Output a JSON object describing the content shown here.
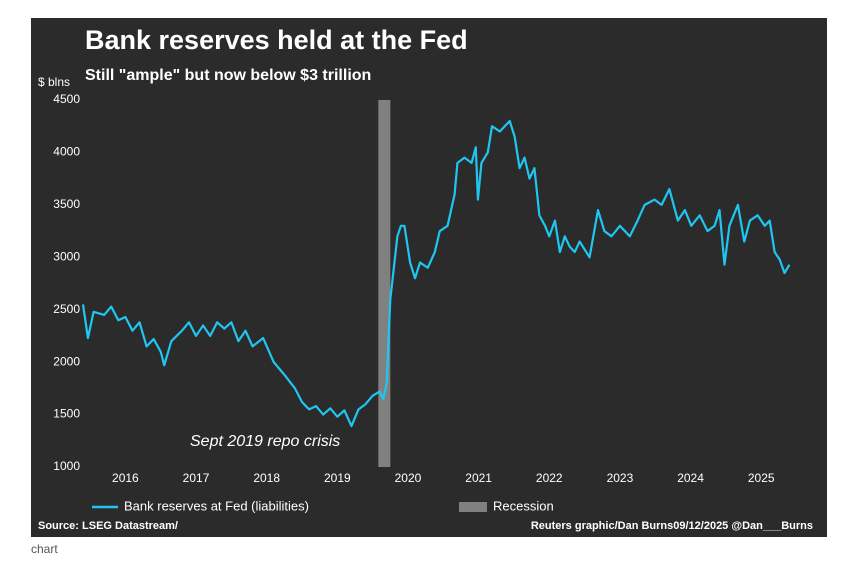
{
  "caption": "chart",
  "chart_data": {
    "type": "line",
    "title": "Bank reserves held at the Fed",
    "subtitle": "Still \"ample\" but now below $3 trillion",
    "ylabel": "$ blns",
    "annotation": "Sept 2019 repo crisis",
    "source": "Source: LSEG Datastream/",
    "credit": "Reuters graphic/Dan Burns09/12/2025 @Dan___Burns",
    "xlim": [
      2015.9,
      2025.95
    ],
    "xticks": [
      2016,
      2017,
      2018,
      2019,
      2020,
      2021,
      2022,
      2023,
      2024,
      2025
    ],
    "ylim": [
      1000,
      4500
    ],
    "yticks": [
      1000,
      1500,
      2000,
      2500,
      3000,
      3500,
      4000,
      4500
    ],
    "grid": false,
    "x": [
      2015.9,
      2015.97,
      2016.05,
      2016.2,
      2016.3,
      2016.4,
      2016.5,
      2016.6,
      2016.7,
      2016.8,
      2016.9,
      2017.0,
      2017.05,
      2017.15,
      2017.3,
      2017.4,
      2017.5,
      2017.6,
      2017.7,
      2017.8,
      2017.9,
      2018.0,
      2018.1,
      2018.2,
      2018.3,
      2018.45,
      2018.6,
      2018.75,
      2018.9,
      2019.0,
      2019.1,
      2019.2,
      2019.3,
      2019.4,
      2019.5,
      2019.6,
      2019.7,
      2019.8,
      2019.9,
      2020.0,
      2020.1,
      2020.15,
      2020.2,
      2020.25,
      2020.3,
      2020.35,
      2020.4,
      2020.45,
      2020.53,
      2020.6,
      2020.67,
      2020.78,
      2020.88,
      2020.95,
      2021.06,
      2021.16,
      2021.2,
      2021.3,
      2021.4,
      2021.46,
      2021.49,
      2021.54,
      2021.63,
      2021.69,
      2021.8,
      2021.94,
      2022.01,
      2022.08,
      2022.15,
      2022.22,
      2022.29,
      2022.36,
      2022.44,
      2022.5,
      2022.58,
      2022.65,
      2022.72,
      2022.79,
      2022.86,
      2022.93,
      2023.07,
      2023.19,
      2023.28,
      2023.38,
      2023.5,
      2023.64,
      2023.75,
      2023.85,
      2023.99,
      2024.09,
      2024.2,
      2024.32,
      2024.42,
      2024.51,
      2024.63,
      2024.74,
      2024.84,
      2024.91,
      2024.98,
      2025.05,
      2025.17,
      2025.26,
      2025.34,
      2025.45,
      2025.55,
      2025.62,
      2025.69,
      2025.76,
      2025.83,
      2025.9
    ],
    "series": [
      {
        "name": "Bank reserves at Fed (liabilities)",
        "color": "#1fc6f0",
        "values": [
          2550,
          2230,
          2480,
          2450,
          2530,
          2400,
          2430,
          2300,
          2380,
          2150,
          2220,
          2100,
          1970,
          2200,
          2300,
          2380,
          2250,
          2350,
          2250,
          2380,
          2320,
          2380,
          2200,
          2300,
          2150,
          2230,
          2000,
          1880,
          1750,
          1620,
          1550,
          1580,
          1500,
          1560,
          1480,
          1540,
          1390,
          1550,
          1600,
          1680,
          1720,
          1650,
          1800,
          2600,
          2900,
          3200,
          3300,
          3300,
          2950,
          2800,
          2950,
          2900,
          3050,
          3250,
          3300,
          3600,
          3900,
          3950,
          3900,
          4050,
          3550,
          3900,
          4000,
          4250,
          4200,
          4300,
          4150,
          3850,
          3950,
          3750,
          3850,
          3400,
          3300,
          3200,
          3350,
          3050,
          3200,
          3100,
          3050,
          3150,
          3000,
          3450,
          3250,
          3200,
          3300,
          3200,
          3350,
          3500,
          3550,
          3500,
          3650,
          3350,
          3450,
          3300,
          3400,
          3250,
          3300,
          3450,
          2930,
          3300,
          3500,
          3150,
          3350,
          3400,
          3300,
          3350,
          3050,
          2980,
          2850,
          2930
        ]
      }
    ],
    "spans": [
      {
        "name": "Recession",
        "color": "#808080",
        "x": [
          2020.08,
          2020.25
        ]
      }
    ]
  }
}
